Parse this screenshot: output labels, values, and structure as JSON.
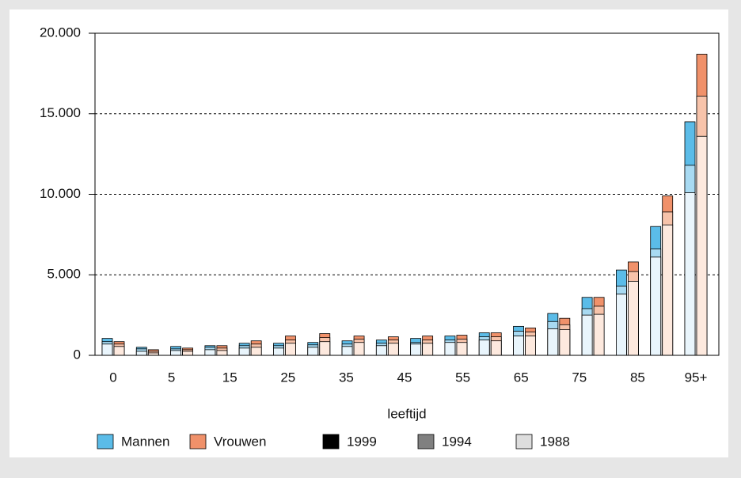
{
  "chart_data": {
    "type": "overlapped-bar",
    "x_label": "leeftijd",
    "xtick_labels": [
      "0",
      "5",
      "15",
      "25",
      "35",
      "45",
      "55",
      "65",
      "75",
      "85",
      "95+"
    ],
    "ylim": [
      0,
      20000
    ],
    "yticks": [
      0,
      {
        "value": 5000,
        "label": "5.000"
      },
      {
        "value": 10000,
        "label": "10.000"
      },
      {
        "value": 15000,
        "label": "15.000"
      },
      {
        "value": 20000,
        "label": "20.000"
      }
    ],
    "grid": true,
    "series": [
      {
        "name": "Mannen",
        "color": "#5bbce8",
        "years": [
          {
            "name": "1999",
            "legend_color": "#000000",
            "color": "#5bbce8",
            "values": [
              1050,
              500,
              550,
              600,
              750,
              750,
              800,
              900,
              950,
              1050,
              1200,
              1400,
              1800,
              2600,
              3600,
              5300,
              8000,
              14500
            ]
          },
          {
            "name": "1994",
            "legend_color": "#808080",
            "color": "#a8daf2",
            "values": [
              850,
              400,
              400,
              500,
              600,
              600,
              650,
              700,
              750,
              800,
              950,
              1150,
              1500,
              2100,
              2900,
              4300,
              6600,
              11800
            ]
          },
          {
            "name": "1988",
            "legend_color": "#dddddd",
            "color": "#e9f5fc",
            "values": [
              700,
              250,
              300,
              350,
              450,
              450,
              500,
              550,
              600,
              700,
              800,
              950,
              1200,
              1650,
              2500,
              3800,
              6100,
              10100
            ]
          }
        ]
      },
      {
        "name": "Vrouwen",
        "color": "#f0916a",
        "years": [
          {
            "name": "1999",
            "legend_color": "#000000",
            "color": "#f0916a",
            "values": [
              850,
              350,
              450,
              600,
              900,
              1200,
              1350,
              1200,
              1150,
              1200,
              1250,
              1400,
              1700,
              2300,
              3600,
              5800,
              9900,
              18700
            ]
          },
          {
            "name": "1994",
            "legend_color": "#808080",
            "color": "#f7c3aa",
            "values": [
              700,
              250,
              350,
              450,
              700,
              950,
              1100,
              1000,
              950,
              950,
              1000,
              1150,
              1450,
              1900,
              3050,
              5200,
              8900,
              16100
            ]
          },
          {
            "name": "1988",
            "legend_color": "#dddddd",
            "color": "#fde9de",
            "values": [
              550,
              150,
              250,
              300,
              500,
              750,
              850,
              800,
              750,
              750,
              800,
              900,
              1200,
              1600,
              2550,
              4600,
              8100,
              13600
            ]
          }
        ]
      }
    ]
  }
}
